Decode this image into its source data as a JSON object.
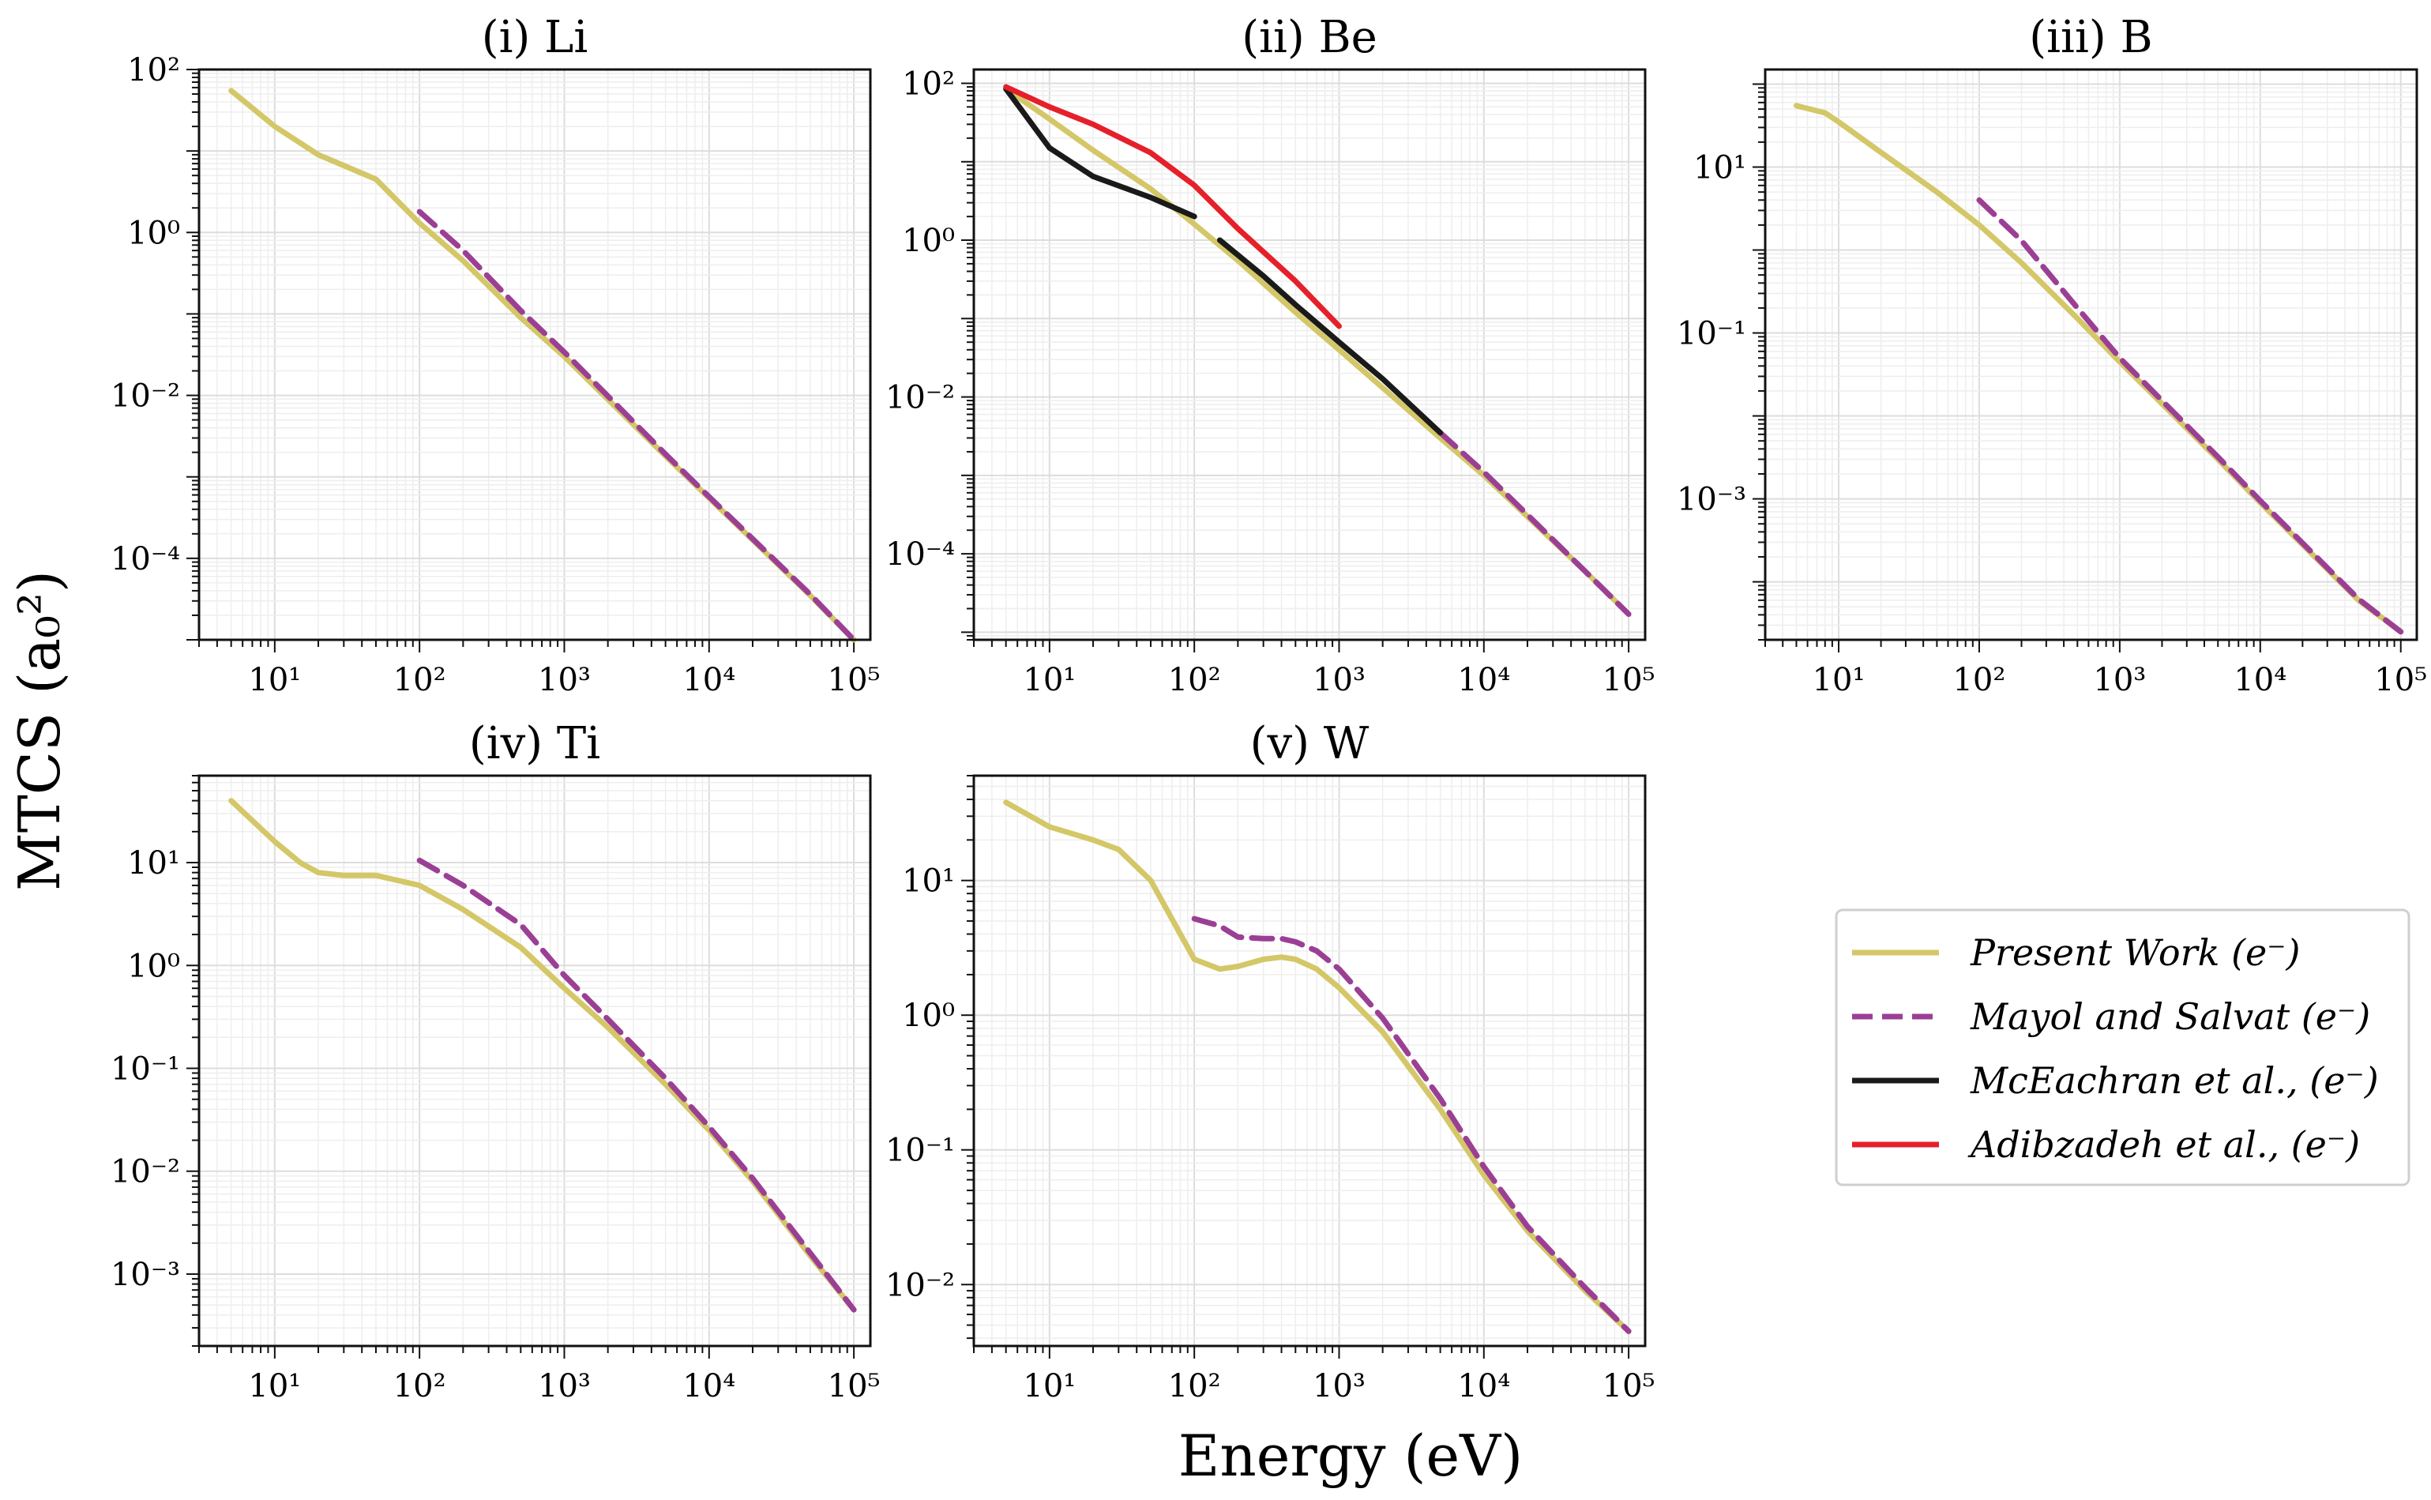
{
  "figure": {
    "xlabel": "Energy (eV)",
    "ylabel": "MTCS (a₀²)"
  },
  "series_styles": {
    "Present Work (e⁻)": {
      "color": "#d4c768",
      "dash": "solid"
    },
    "Mayol and Salvat (e⁻)": {
      "color": "#9b3f95",
      "dash": "dashed"
    },
    "McEachran et al., (e⁻)": {
      "color": "#1a1a1a",
      "dash": "solid"
    },
    "Adibzadeh et al., (e⁻)": {
      "color": "#e5202a",
      "dash": "solid"
    }
  },
  "legend": {
    "placement": "right-lower",
    "entries": [
      "Present Work (e⁻)",
      "Mayol and Salvat (e⁻)",
      "McEachran et al., (e⁻)",
      "Adibzadeh et al., (e⁻)"
    ]
  },
  "chart_data": [
    {
      "type": "line",
      "title": "(i) Li",
      "xscale": "log",
      "yscale": "log",
      "xlim": [
        3,
        130000
      ],
      "ylim": [
        1e-05,
        100
      ],
      "xticks": [
        10,
        100,
        1000,
        10000,
        100000
      ],
      "xticklabels": [
        "10¹",
        "10²",
        "10³",
        "10⁴",
        "10⁵"
      ],
      "yticks": [
        0.0001,
        0.01,
        1,
        100
      ],
      "yticklabels": [
        "10⁻⁴",
        "10⁻²",
        "10⁰",
        "10²"
      ],
      "series": [
        {
          "name": "Present Work (e⁻)",
          "x": [
            5,
            10,
            20,
            50,
            100,
            200,
            500,
            1000,
            5000,
            10000,
            50000,
            100000
          ],
          "y": [
            55,
            20,
            9,
            4.5,
            1.3,
            0.45,
            0.09,
            0.03,
            0.0018,
            0.00055,
            3.5e-05,
            1e-05
          ]
        },
        {
          "name": "Mayol and Salvat (e⁻)",
          "x": [
            100,
            200,
            500,
            1000,
            5000,
            10000,
            50000,
            100000
          ],
          "y": [
            1.8,
            0.6,
            0.11,
            0.034,
            0.0019,
            0.00057,
            3.6e-05,
            1e-05
          ]
        }
      ]
    },
    {
      "type": "line",
      "title": "(ii) Be",
      "xscale": "log",
      "yscale": "log",
      "xlim": [
        3,
        130000
      ],
      "ylim": [
        8e-06,
        150
      ],
      "xticks": [
        10,
        100,
        1000,
        10000,
        100000
      ],
      "xticklabels": [
        "10¹",
        "10²",
        "10³",
        "10⁴",
        "10⁵"
      ],
      "yticks": [
        0.0001,
        0.01,
        1,
        100
      ],
      "yticklabels": [
        "10⁻⁴",
        "10⁻²",
        "10⁰",
        "10²"
      ],
      "series": [
        {
          "name": "Present Work (e⁻)",
          "x": [
            5,
            10,
            20,
            50,
            100,
            200,
            500,
            1000,
            5000,
            10000,
            50000,
            100000
          ],
          "y": [
            85,
            35,
            14,
            4.5,
            1.6,
            0.55,
            0.12,
            0.04,
            0.003,
            0.001,
            6e-05,
            1.7e-05
          ]
        },
        {
          "name": "Mayol and Salvat (e⁻)",
          "x": [
            5000,
            10000,
            50000,
            100000
          ],
          "y": [
            0.0035,
            0.0011,
            6e-05,
            1.7e-05
          ]
        },
        {
          "name": "McEachran et al., (e⁻)",
          "x": [
            5,
            10,
            20,
            50,
            100
          ],
          "y": [
            85,
            15,
            6.5,
            3.5,
            2
          ]
        },
        {
          "name": "McEachran et al., (e⁻)",
          "x": [
            150,
            300,
            500,
            1000,
            2000,
            5000
          ],
          "y": [
            1,
            0.35,
            0.15,
            0.05,
            0.017,
            0.0035
          ]
        },
        {
          "name": "Adibzadeh et al., (e⁻)",
          "x": [
            5,
            10,
            20,
            50,
            100,
            200,
            500,
            1000
          ],
          "y": [
            90,
            50,
            30,
            13,
            5,
            1.4,
            0.3,
            0.08
          ]
        }
      ]
    },
    {
      "type": "line",
      "title": "(iii) B",
      "xscale": "log",
      "yscale": "log",
      "xlim": [
        3,
        130000
      ],
      "ylim": [
        2e-05,
        150
      ],
      "xticks": [
        10,
        100,
        1000,
        10000,
        100000
      ],
      "xticklabels": [
        "10¹",
        "10²",
        "10³",
        "10⁴",
        "10⁵"
      ],
      "yticks": [
        0.001,
        0.1,
        10
      ],
      "yticklabels": [
        "10⁻³",
        "10⁻¹",
        "10¹"
      ],
      "series": [
        {
          "name": "Present Work (e⁻)",
          "x": [
            5,
            8,
            10,
            20,
            50,
            100,
            200,
            500,
            1000,
            5000,
            10000,
            50000,
            100000
          ],
          "y": [
            55,
            45,
            35,
            15,
            5,
            2,
            0.7,
            0.15,
            0.045,
            0.003,
            0.0009,
            6e-05,
            2.5e-05
          ]
        },
        {
          "name": "Mayol and Salvat (e⁻)",
          "x": [
            100,
            200,
            500,
            1000,
            5000,
            10000,
            50000,
            100000
          ],
          "y": [
            4,
            1.3,
            0.2,
            0.05,
            0.0032,
            0.00095,
            6.2e-05,
            2.5e-05
          ]
        }
      ]
    },
    {
      "type": "line",
      "title": "(iv) Ti",
      "xscale": "log",
      "yscale": "log",
      "xlim": [
        3,
        130000
      ],
      "ylim": [
        0.0002,
        70
      ],
      "xticks": [
        10,
        100,
        1000,
        10000,
        100000
      ],
      "xticklabels": [
        "10¹",
        "10²",
        "10³",
        "10⁴",
        "10⁵"
      ],
      "yticks": [
        0.001,
        0.01,
        0.1,
        1,
        10
      ],
      "yticklabels": [
        "10⁻³",
        "10⁻²",
        "10⁻¹",
        "10⁰",
        "10¹"
      ],
      "series": [
        {
          "name": "Present Work (e⁻)",
          "x": [
            5,
            10,
            15,
            20,
            30,
            50,
            100,
            200,
            500,
            1000,
            2000,
            5000,
            10000,
            20000,
            50000,
            100000
          ],
          "y": [
            40,
            16,
            10,
            8,
            7.5,
            7.5,
            6,
            3.5,
            1.5,
            0.6,
            0.25,
            0.07,
            0.025,
            0.008,
            0.0015,
            0.00045
          ]
        },
        {
          "name": "Mayol and Salvat (e⁻)",
          "x": [
            100,
            200,
            500,
            1000,
            2000,
            5000,
            10000,
            20000,
            50000,
            100000
          ],
          "y": [
            10.5,
            6,
            2.5,
            0.8,
            0.3,
            0.08,
            0.027,
            0.0085,
            0.0016,
            0.00045
          ]
        }
      ]
    },
    {
      "type": "line",
      "title": "(v) W",
      "xscale": "log",
      "yscale": "log",
      "xlim": [
        3,
        130000
      ],
      "ylim": [
        0.0035,
        60
      ],
      "xticks": [
        10,
        100,
        1000,
        10000,
        100000
      ],
      "xticklabels": [
        "10¹",
        "10²",
        "10³",
        "10⁴",
        "10⁵"
      ],
      "yticks": [
        0.01,
        0.1,
        1,
        10
      ],
      "yticklabels": [
        "10⁻²",
        "10⁻¹",
        "10⁰",
        "10¹"
      ],
      "series": [
        {
          "name": "Present Work (e⁻)",
          "x": [
            5,
            10,
            20,
            30,
            50,
            80,
            100,
            150,
            200,
            300,
            400,
            500,
            700,
            1000,
            2000,
            5000,
            10000,
            20000,
            50000,
            100000
          ],
          "y": [
            38,
            25,
            20,
            17,
            10,
            4,
            2.6,
            2.2,
            2.3,
            2.6,
            2.7,
            2.6,
            2.2,
            1.6,
            0.75,
            0.2,
            0.065,
            0.025,
            0.009,
            0.0045
          ]
        },
        {
          "name": "Mayol and Salvat (e⁻)",
          "x": [
            100,
            150,
            200,
            300,
            400,
            500,
            700,
            1000,
            2000,
            5000,
            10000,
            20000,
            50000,
            100000
          ],
          "y": [
            5.2,
            4.6,
            3.8,
            3.7,
            3.7,
            3.5,
            3,
            2.2,
            0.95,
            0.24,
            0.075,
            0.027,
            0.0095,
            0.0045
          ]
        }
      ]
    }
  ]
}
